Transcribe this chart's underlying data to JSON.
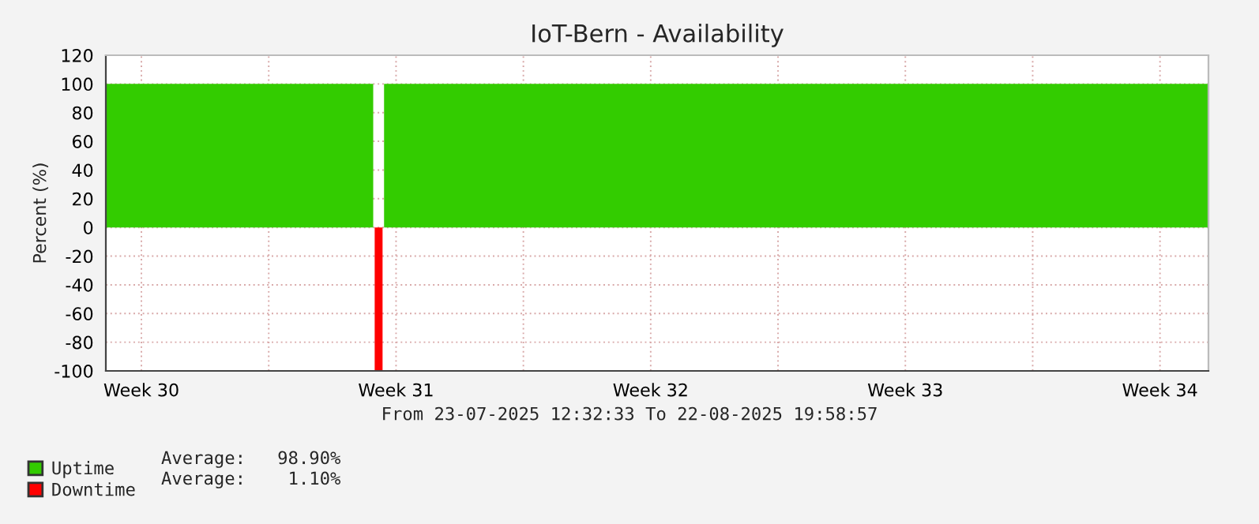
{
  "chart_data": {
    "type": "area",
    "title": "IoT-Bern - Availability",
    "ylabel": "Percent (%)",
    "series": [
      {
        "name": "Uptime",
        "color": "#33cc00",
        "x": [
          "2025-07-23T12:32",
          "2025-07-30T20:56",
          "2025-07-30T21:30",
          "2025-07-31T04:05",
          "2025-08-22T19:58"
        ],
        "values": [
          100,
          100,
          null,
          100,
          100
        ]
      },
      {
        "name": "Downtime",
        "color": "#ff0000",
        "x": [
          "2025-07-30T21:54",
          "2025-07-31T03:06"
        ],
        "values": [
          -100,
          -100
        ]
      }
    ],
    "xlim": [
      "2025-07-23T12:32",
      "2025-08-22T19:58"
    ],
    "xticks": [
      {
        "value": "2025-07-24T12:00",
        "label": "Week 30"
      },
      {
        "value": "2025-07-28",
        "label": null
      },
      {
        "value": "2025-07-31T12:00",
        "label": "Week 31"
      },
      {
        "value": "2025-08-04",
        "label": null
      },
      {
        "value": "2025-08-07T12:00",
        "label": "Week 32"
      },
      {
        "value": "2025-08-11",
        "label": null
      },
      {
        "value": "2025-08-14T12:00",
        "label": "Week 33"
      },
      {
        "value": "2025-08-18",
        "label": null
      },
      {
        "value": "2025-08-21T12:00",
        "label": "Week 34"
      }
    ],
    "ylim": [
      -100,
      120
    ],
    "yticks": [
      -100,
      -80,
      -60,
      -40,
      -20,
      0,
      20,
      40,
      60,
      80,
      100,
      120
    ],
    "grid": true,
    "legend": "bottom left",
    "annotations": [
      "From 23-07-2025 12:32:33 To 22-08-2025 19:58:57",
      "Average:   98.90%",
      "Average:    1.10%"
    ]
  }
}
